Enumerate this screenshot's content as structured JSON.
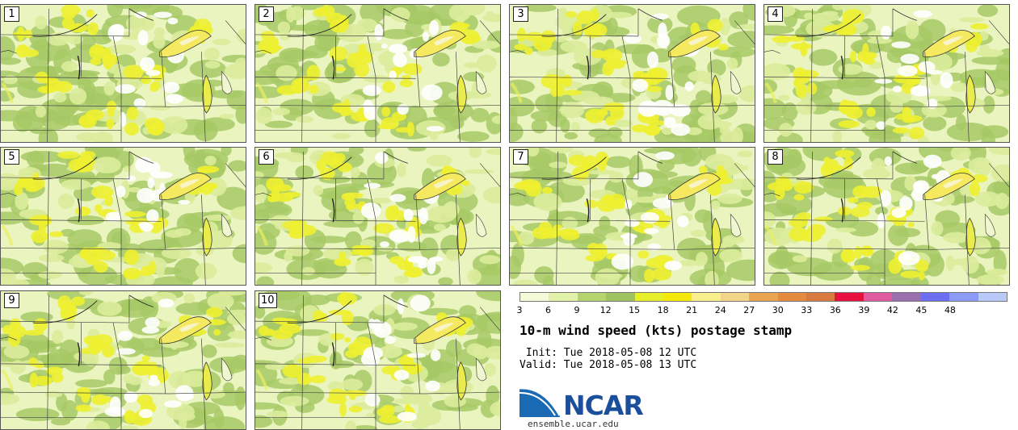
{
  "panels": [
    {
      "label": "1"
    },
    {
      "label": "2"
    },
    {
      "label": "3"
    },
    {
      "label": "4"
    },
    {
      "label": "5"
    },
    {
      "label": "6"
    },
    {
      "label": "7"
    },
    {
      "label": "8"
    },
    {
      "label": "9"
    },
    {
      "label": "10"
    }
  ],
  "colorbar": {
    "ticks": [
      "3",
      "6",
      "9",
      "12",
      "15",
      "18",
      "21",
      "24",
      "27",
      "30",
      "33",
      "36",
      "39",
      "42",
      "45",
      "48"
    ],
    "colors": [
      "#f4f9d8",
      "#e2f1a8",
      "#b5d36f",
      "#9fc35e",
      "#e6ef2a",
      "#f5e90c",
      "#f8ef8c",
      "#f3d58a",
      "#eaa350",
      "#e58b3e",
      "#d97a40",
      "#e8103f",
      "#e05aa0",
      "#9a6fb0",
      "#6c6ff0",
      "#8b9bf5",
      "#b9c9f8"
    ]
  },
  "title": "10-m wind speed (kts) postage stamp",
  "init": " Init: Tue 2018-05-08 12 UTC",
  "valid": "Valid: Tue 2018-05-08 13 UTC",
  "logo": {
    "text": "NCAR",
    "url_text": "ensemble.ucar.edu",
    "brand_color": "#1b4f9c"
  }
}
